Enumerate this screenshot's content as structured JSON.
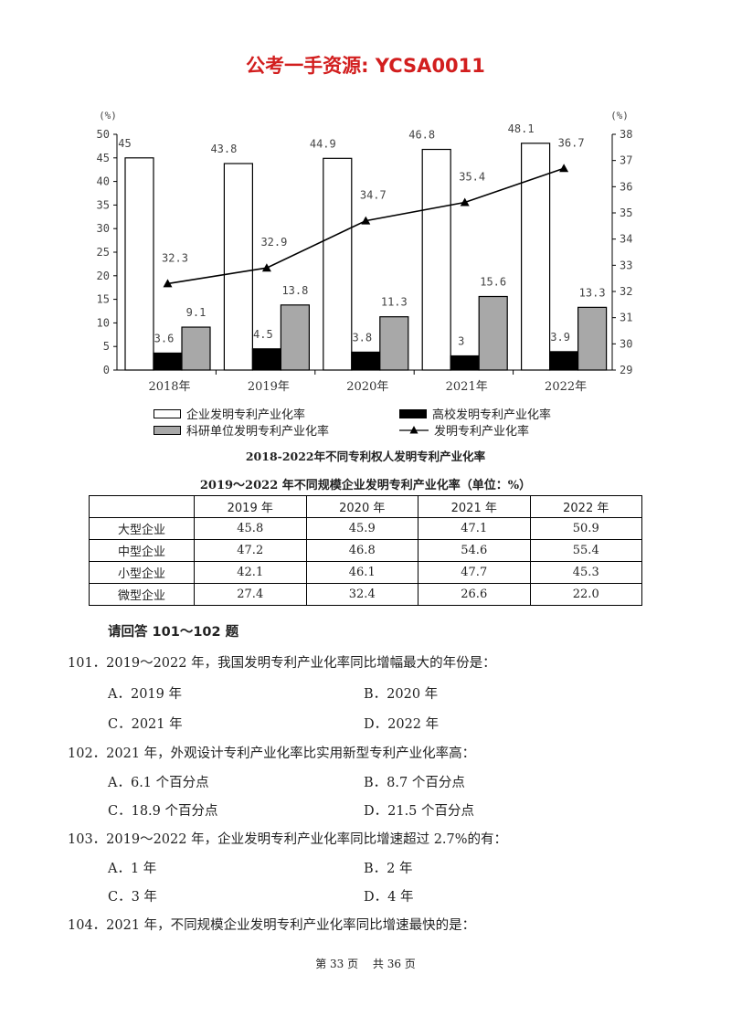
{
  "header": {
    "title": "公考一手资源: YCSA0011"
  },
  "chart_data": {
    "type": "bar",
    "title": "2018-2022年不同专利权人发明专利产业化率",
    "categories": [
      "2018年",
      "2019年",
      "2020年",
      "2021年",
      "2022年"
    ],
    "left_axis": {
      "unit": "(%)",
      "range": [
        0,
        50
      ],
      "ticks": [
        "0",
        "5",
        "10",
        "15",
        "20",
        "25",
        "30",
        "35",
        "40",
        "45",
        "50"
      ]
    },
    "right_axis": {
      "unit": "(%)",
      "range": [
        29,
        38
      ],
      "ticks": [
        "29",
        "30",
        "31",
        "32",
        "33",
        "34",
        "35",
        "36",
        "37",
        "38"
      ]
    },
    "series": [
      {
        "name": "企业发明专利产业化率",
        "type": "bar",
        "axis": "left",
        "color": "#ffffff",
        "values": [
          45,
          43.8,
          44.9,
          46.8,
          48.1
        ],
        "labels": [
          "45",
          "43.8",
          "44.9",
          "46.8",
          "48.1"
        ]
      },
      {
        "name": "高校发明专利产业化率",
        "type": "bar",
        "axis": "left",
        "color": "#000000",
        "values": [
          3.6,
          4.5,
          3.8,
          3,
          3.9
        ],
        "labels": [
          "3.6",
          "4.5",
          "3.8",
          "3",
          "3.9"
        ]
      },
      {
        "name": "科研单位发明专利产业化率",
        "type": "bar",
        "axis": "left",
        "color": "#a8a8a8",
        "values": [
          9.1,
          13.8,
          11.3,
          15.6,
          13.3
        ],
        "labels": [
          "9.1",
          "13.8",
          "11.3",
          "15.6",
          "13.3"
        ]
      },
      {
        "name": "发明专利产业化率",
        "type": "line",
        "axis": "right",
        "color": "#000000",
        "values": [
          32.3,
          32.9,
          34.7,
          35.4,
          36.7
        ],
        "labels": [
          "32.3",
          "32.9",
          "34.7",
          "35.4",
          "36.7"
        ]
      }
    ]
  },
  "table": {
    "title": "2019～2022 年不同规模企业发明专利产业化率（单位：%）",
    "columns": [
      "",
      "2019 年",
      "2020 年",
      "2021 年",
      "2022 年"
    ],
    "rows": [
      {
        "label": "大型企业",
        "values": [
          "45.8",
          "45.9",
          "47.1",
          "50.9"
        ]
      },
      {
        "label": "中型企业",
        "values": [
          "47.2",
          "46.8",
          "54.6",
          "55.4"
        ]
      },
      {
        "label": "小型企业",
        "values": [
          "42.1",
          "46.1",
          "47.7",
          "45.3"
        ]
      },
      {
        "label": "微型企业",
        "values": [
          "27.4",
          "32.4",
          "26.6",
          "22.0"
        ]
      }
    ]
  },
  "instruction": "请回答 101～102 题",
  "questions": [
    {
      "stem": "101．2019～2022 年，我国发明专利产业化率同比增幅最大的年份是：",
      "options": [
        "A．2019 年",
        "B．2020 年",
        "C．2021 年",
        "D．2022 年"
      ]
    },
    {
      "stem": "102．2021 年，外观设计专利产业化率比实用新型专利产业化率高：",
      "options": [
        "A．6.1 个百分点",
        "B．8.7 个百分点",
        "C．18.9 个百分点",
        "D．21.5 个百分点"
      ]
    },
    {
      "stem": "103．2019～2022 年，企业发明专利产业化率同比增速超过 2.7%的有：",
      "options": [
        "A．1 年",
        "B．2 年",
        "C．3 年",
        "D．4 年"
      ]
    },
    {
      "stem": "104．2021 年，不同规模企业发明专利产业化率同比增速最快的是：",
      "options": []
    }
  ],
  "footer": "第 33 页　 共 36 页"
}
